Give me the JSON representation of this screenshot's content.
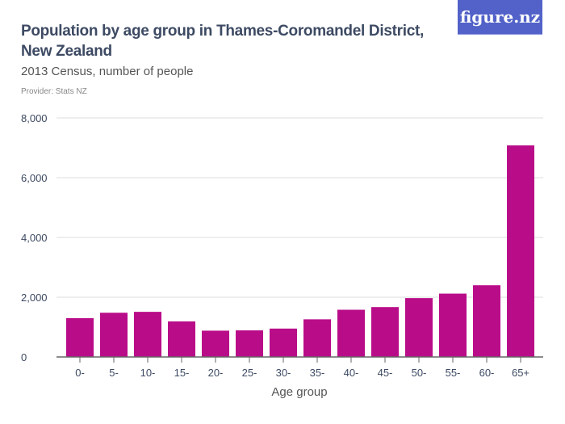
{
  "header": {
    "title": "Population by age group in Thames-Coromandel District, New Zealand",
    "subtitle": "2013 Census, number of people",
    "provider": "Provider: Stats NZ",
    "logo": "figure.nz"
  },
  "colors": {
    "bar": "#b90c88",
    "logo": "#5262c8"
  },
  "chart_data": {
    "type": "bar",
    "title": "Population by age group in Thames-Coromandel District, New Zealand",
    "subtitle": "2013 Census, number of people",
    "xlabel": "Age group",
    "ylabel": "",
    "ylim": [
      0,
      8000
    ],
    "yticks": [
      0,
      2000,
      4000,
      6000,
      8000
    ],
    "ytick_labels": [
      "0",
      "2,000",
      "4,000",
      "6,000",
      "8,000"
    ],
    "grid": true,
    "categories": [
      "0-",
      "5-",
      "10-",
      "15-",
      "20-",
      "25-",
      "30-",
      "35-",
      "40-",
      "45-",
      "50-",
      "55-",
      "60-",
      "65+"
    ],
    "values": [
      1300,
      1480,
      1510,
      1190,
      880,
      890,
      950,
      1260,
      1580,
      1670,
      1970,
      2120,
      2400,
      7080
    ]
  }
}
